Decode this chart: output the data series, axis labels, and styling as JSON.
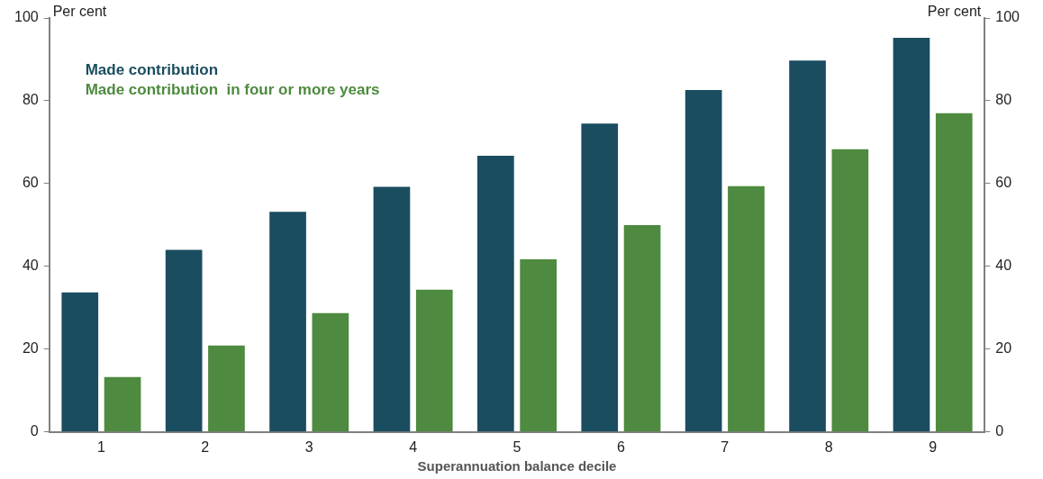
{
  "chart_data": {
    "type": "bar",
    "categories": [
      "1",
      "2",
      "3",
      "4",
      "5",
      "6",
      "7",
      "8",
      "9"
    ],
    "series": [
      {
        "name": "Made contribution",
        "color": "#1a4d5f",
        "values": [
          33.7,
          44,
          53.2,
          59.2,
          66.7,
          74.5,
          82.6,
          89.7,
          95.2
        ]
      },
      {
        "name": "Made contribution  in four or more years",
        "color": "#4e8a3f",
        "values": [
          13.3,
          20.9,
          28.7,
          34.4,
          41.7,
          50,
          59.4,
          68.3,
          77
        ]
      }
    ],
    "xlabel": "Superannuation balance decile",
    "ylabel": "Per cent",
    "y2label": "Per cent",
    "ylim": [
      0,
      100
    ],
    "yticks": [
      0,
      20,
      40,
      60,
      80,
      100
    ],
    "y2lim": [
      0,
      100
    ],
    "y2ticks": [
      0,
      20,
      40,
      60,
      80,
      100
    ],
    "grid": false,
    "legend": "top left"
  }
}
